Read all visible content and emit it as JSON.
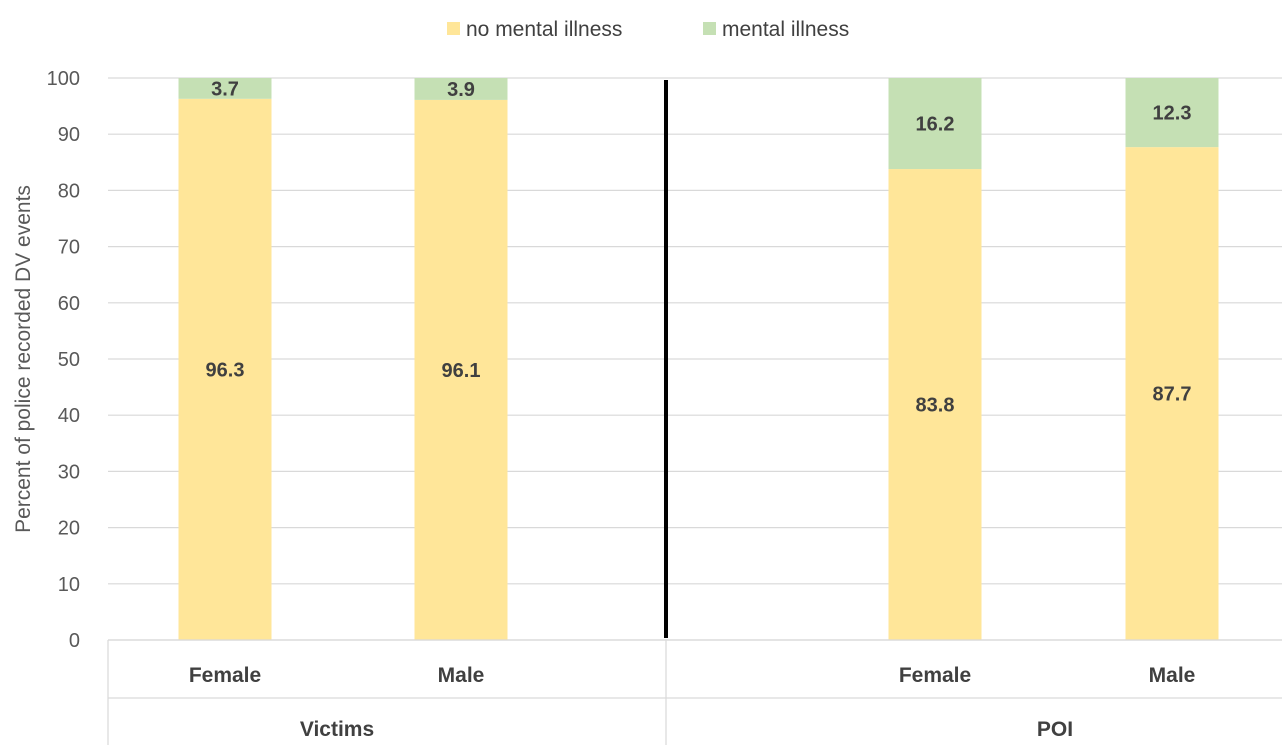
{
  "chart_data": {
    "type": "bar",
    "stacked": true,
    "categories": [
      "Female",
      "Male",
      "Female",
      "Male"
    ],
    "groups": [
      {
        "label": "Victims",
        "categories": [
          "Female",
          "Male"
        ]
      },
      {
        "label": "POI",
        "categories": [
          "Female",
          "Male"
        ]
      }
    ],
    "series": [
      {
        "name": "no mental illness",
        "color": "#FFE699",
        "values": [
          96.3,
          96.1,
          83.8,
          87.7
        ]
      },
      {
        "name": "mental illness",
        "color": "#C5E0B4",
        "values": [
          3.7,
          3.9,
          16.2,
          12.3
        ]
      }
    ],
    "data_labels": [
      [
        "96.3",
        "96.1",
        "83.8",
        "87.7"
      ],
      [
        "3.7",
        "3.9",
        "16.2",
        "12.3"
      ]
    ],
    "ylabel": "Percent of police recorded DV events",
    "ylim": [
      0,
      100
    ],
    "yticks": [
      0,
      10,
      20,
      30,
      40,
      50,
      60,
      70,
      80,
      90,
      100
    ],
    "grid": true,
    "legend": "top-center",
    "separator": "vertical line between groups"
  }
}
